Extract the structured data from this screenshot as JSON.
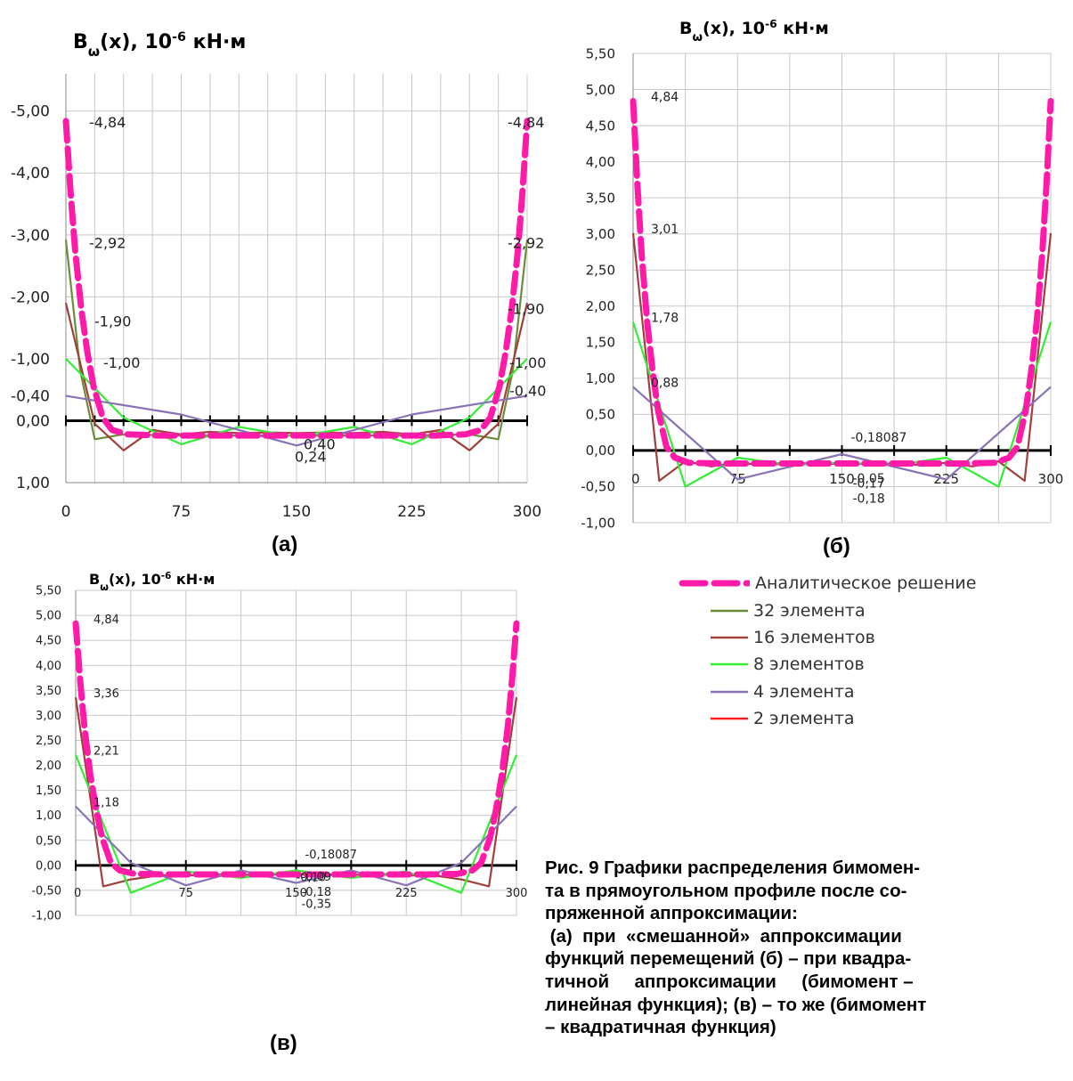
{
  "chart_data": [
    {
      "id": "a",
      "type": "line",
      "title": "B_ω(x), 10⁻⁶ кН·м",
      "panel_label": "(а)",
      "y_ticks": [
        "-5,00",
        "-4,00",
        "-3,00",
        "-2,00",
        "-1,00",
        "0,00",
        "1,00"
      ],
      "y_tick_values": [
        -5,
        -4,
        -3,
        -2,
        -1,
        0,
        1
      ],
      "y_extra_label": {
        "text": "-0,40",
        "y": -0.4
      },
      "x_ticks": [
        "0",
        "75",
        "150",
        "225",
        "300"
      ],
      "x_tick_values": [
        0,
        75,
        150,
        225,
        300
      ],
      "xlim": [
        0,
        300
      ],
      "ylim": [
        -5.6,
        1.0
      ],
      "y_inverted": true,
      "x_grid_step": 18.75,
      "series": [
        {
          "name": "Аналитическое решение",
          "color": "#ff1aa8",
          "width": 7,
          "dash": "22,9",
          "x": [
            0,
            3,
            6,
            10,
            14,
            18,
            24,
            30,
            40,
            60,
            150,
            240,
            260,
            270,
            276,
            282,
            286,
            290,
            294,
            297,
            300
          ],
          "y": [
            -4.84,
            -3.7,
            -2.75,
            -1.8,
            -1.1,
            -0.55,
            -0.05,
            0.15,
            0.22,
            0.24,
            0.24,
            0.24,
            0.22,
            0.15,
            -0.05,
            -0.55,
            -1.1,
            -1.8,
            -2.75,
            -3.7,
            -4.84
          ]
        },
        {
          "name": "32 элемента",
          "color": "#6b8e3a",
          "width": 2.2,
          "x": [
            0,
            9.375,
            18.75,
            37.5,
            75,
            112.5,
            150,
            187.5,
            225,
            262.5,
            281.25,
            290.625,
            300
          ],
          "y": [
            -2.92,
            -0.8,
            0.3,
            0.22,
            0.24,
            0.24,
            0.24,
            0.24,
            0.24,
            0.22,
            0.3,
            -0.8,
            -2.92
          ]
        },
        {
          "name": "16 элементов",
          "color": "#a0403a",
          "width": 2.2,
          "x": [
            0,
            18.75,
            37.5,
            56.25,
            75,
            93.75,
            112.5,
            131.25,
            150,
            168.75,
            187.5,
            206.25,
            225,
            243.75,
            262.5,
            281.25,
            300
          ],
          "y": [
            -1.9,
            0.05,
            0.48,
            0.15,
            0.22,
            0.18,
            0.2,
            0.19,
            0.2,
            0.19,
            0.2,
            0.18,
            0.22,
            0.15,
            0.48,
            0.05,
            -1.9
          ]
        },
        {
          "name": "8 элементов",
          "color": "#33ee33",
          "width": 2.2,
          "x": [
            0,
            37.5,
            75,
            112.5,
            150,
            187.5,
            225,
            262.5,
            300
          ],
          "y": [
            -1.0,
            -0.05,
            0.38,
            0.1,
            0.26,
            0.1,
            0.38,
            -0.05,
            -1.0
          ]
        },
        {
          "name": "4 элемента",
          "color": "#8a72b6",
          "width": 2.2,
          "x": [
            0,
            75,
            150,
            225,
            300
          ],
          "y": [
            -0.4,
            -0.1,
            0.4,
            -0.1,
            -0.4
          ]
        }
      ],
      "data_labels": [
        {
          "text": "-4,84",
          "x": 0,
          "y": -4.84,
          "dx": 26,
          "dy": 7
        },
        {
          "text": "-4,84",
          "x": 300,
          "y": -4.84,
          "dx": -22,
          "dy": 7
        },
        {
          "text": "-2,92",
          "x": 0,
          "y": -2.92,
          "dx": 26,
          "dy": 9
        },
        {
          "text": "-2,92",
          "x": 300,
          "y": -2.92,
          "dx": -22,
          "dy": 9
        },
        {
          "text": "-1,90",
          "x": 0,
          "y": -1.9,
          "dx": 32,
          "dy": 26
        },
        {
          "text": "-1,90",
          "x": 300,
          "y": -1.9,
          "dx": -22,
          "dy": 12
        },
        {
          "text": "-1,00",
          "x": 0,
          "y": -1.0,
          "dx": 42,
          "dy": 10
        },
        {
          "text": "-1,00",
          "x": 300,
          "y": -1.0,
          "dx": -20,
          "dy": 10
        },
        {
          "text": "-0,40",
          "x": 300,
          "y": -0.4,
          "dx": -20,
          "dy": 0
        },
        {
          "text": "0,40",
          "x": 150,
          "y": 0.4,
          "dx": 8,
          "dy": 4
        },
        {
          "text": "0,24",
          "x": 150,
          "y": 0.4,
          "dx": -2,
          "dy": 18
        }
      ]
    },
    {
      "id": "b",
      "type": "line",
      "title": "B_ω(x), 10⁻⁶ кН·м",
      "panel_label": "(б)",
      "y_ticks": [
        "5,50",
        "5,00",
        "4,50",
        "4,00",
        "3,50",
        "3,00",
        "2,50",
        "2,00",
        "1,50",
        "1,00",
        "0,50",
        "0,00",
        "-0,50",
        "-1,00"
      ],
      "y_tick_values": [
        5.5,
        5.0,
        4.5,
        4.0,
        3.5,
        3.0,
        2.5,
        2.0,
        1.5,
        1.0,
        0.5,
        0.0,
        -0.5,
        -1.0
      ],
      "x_ticks": [
        "0",
        "75",
        "150",
        "225",
        "300"
      ],
      "x_tick_values": [
        0,
        75,
        150,
        225,
        300
      ],
      "xlim": [
        0,
        300
      ],
      "ylim": [
        -1.0,
        5.5
      ],
      "y_inverted": false,
      "x_grid_step": 37.5,
      "series": [
        {
          "name": "Аналитическое решение",
          "color": "#ff1aa8",
          "width": 7,
          "dash": "22,9",
          "x": [
            0,
            3,
            6,
            10,
            14,
            18,
            24,
            30,
            40,
            60,
            150,
            240,
            260,
            270,
            276,
            282,
            286,
            290,
            294,
            297,
            300
          ],
          "y": [
            4.84,
            3.7,
            2.75,
            1.8,
            1.1,
            0.55,
            0.05,
            -0.1,
            -0.17,
            -0.18,
            -0.18,
            -0.18,
            -0.17,
            -0.1,
            0.05,
            0.55,
            1.1,
            1.8,
            2.75,
            3.7,
            4.84
          ]
        },
        {
          "name": "16 элементов",
          "color": "#a0403a",
          "width": 2.2,
          "x": [
            0,
            18.75,
            37.5,
            56.25,
            75,
            93.75,
            112.5,
            131.25,
            150,
            168.75,
            187.5,
            206.25,
            225,
            243.75,
            262.5,
            281.25,
            300
          ],
          "y": [
            3.01,
            -0.42,
            -0.15,
            -0.22,
            -0.17,
            -0.2,
            -0.18,
            -0.19,
            -0.18,
            -0.19,
            -0.18,
            -0.2,
            -0.17,
            -0.22,
            -0.15,
            -0.42,
            3.01
          ]
        },
        {
          "name": "8 элементов",
          "color": "#33ee33",
          "width": 2.2,
          "x": [
            0,
            37.5,
            75,
            112.5,
            150,
            187.5,
            225,
            262.5,
            300
          ],
          "y": [
            1.78,
            -0.5,
            -0.1,
            -0.2,
            -0.17,
            -0.2,
            -0.1,
            -0.5,
            1.78
          ]
        },
        {
          "name": "4 элемента",
          "color": "#8a72b6",
          "width": 2.2,
          "x": [
            0,
            75,
            150,
            225,
            300
          ],
          "y": [
            0.88,
            -0.4,
            -0.05,
            -0.4,
            0.88
          ]
        }
      ],
      "data_labels": [
        {
          "text": "4,84",
          "x": 0,
          "y": 4.84,
          "dx": 20,
          "dy": 0
        },
        {
          "text": "3,01",
          "x": 0,
          "y": 3.01,
          "dx": 20,
          "dy": 0
        },
        {
          "text": "1,78",
          "x": 0,
          "y": 1.78,
          "dx": 20,
          "dy": 0
        },
        {
          "text": "0,88",
          "x": 0,
          "y": 0.88,
          "dx": 20,
          "dy": 0
        },
        {
          "text": "-0,18087",
          "x": 150,
          "y": 0,
          "dx": 10,
          "dy": -10
        },
        {
          "text": "-0,17",
          "x": 150,
          "y": -0.17,
          "dx": 12,
          "dy": 28
        },
        {
          "text": "-0,05",
          "x": 150,
          "y": -0.05,
          "dx": 12,
          "dy": 32
        },
        {
          "text": "-0,18",
          "x": 150,
          "y": -0.18,
          "dx": 12,
          "dy": 44
        }
      ]
    },
    {
      "id": "c",
      "type": "line",
      "title": "B_ω(x), 10⁻⁶ кН·м",
      "panel_label": "(в)",
      "y_ticks": [
        "5,50",
        "5,00",
        "4,50",
        "4,00",
        "3,50",
        "3,00",
        "2,50",
        "2,00",
        "1,50",
        "1,00",
        "0,50",
        "0,00",
        "-0,50",
        "-1,00"
      ],
      "y_tick_values": [
        5.5,
        5.0,
        4.5,
        4.0,
        3.5,
        3.0,
        2.5,
        2.0,
        1.5,
        1.0,
        0.5,
        0.0,
        -0.5,
        -1.0
      ],
      "x_ticks": [
        "0",
        "75",
        "150",
        "225",
        "300"
      ],
      "x_tick_values": [
        0,
        75,
        150,
        225,
        300
      ],
      "xlim": [
        0,
        300
      ],
      "ylim": [
        -1.0,
        5.5
      ],
      "y_inverted": false,
      "x_grid_step": 37.5,
      "series": [
        {
          "name": "Аналитическое решение",
          "color": "#ff1aa8",
          "width": 7,
          "dash": "22,9",
          "x": [
            0,
            3,
            6,
            10,
            14,
            18,
            24,
            30,
            40,
            60,
            150,
            240,
            260,
            270,
            276,
            282,
            286,
            290,
            294,
            297,
            300
          ],
          "y": [
            4.84,
            3.7,
            2.75,
            1.8,
            1.1,
            0.55,
            0.05,
            -0.1,
            -0.17,
            -0.18,
            -0.18,
            -0.18,
            -0.17,
            -0.1,
            0.05,
            0.55,
            1.1,
            1.8,
            2.75,
            3.7,
            4.84
          ]
        },
        {
          "name": "16 элементов",
          "color": "#a0403a",
          "width": 2.2,
          "x": [
            0,
            18.75,
            37.5,
            56.25,
            75,
            93.75,
            112.5,
            131.25,
            150,
            168.75,
            187.5,
            206.25,
            225,
            243.75,
            262.5,
            281.25,
            300
          ],
          "y": [
            3.36,
            -0.42,
            -0.28,
            -0.2,
            -0.2,
            -0.18,
            -0.19,
            -0.18,
            -0.18,
            -0.18,
            -0.19,
            -0.18,
            -0.2,
            -0.2,
            -0.28,
            -0.42,
            3.36
          ]
        },
        {
          "name": "8 элементов",
          "color": "#33ee33",
          "width": 2.2,
          "x": [
            0,
            37.5,
            75,
            112.5,
            150,
            187.5,
            225,
            262.5,
            300
          ],
          "y": [
            2.21,
            -0.55,
            -0.12,
            -0.25,
            -0.1,
            -0.25,
            -0.12,
            -0.55,
            2.21
          ]
        },
        {
          "name": "4 элемента",
          "color": "#8a72b6",
          "width": 2.2,
          "x": [
            0,
            37.5,
            75,
            112.5,
            150,
            187.5,
            225,
            262.5,
            300
          ],
          "y": [
            1.18,
            0.05,
            -0.4,
            -0.1,
            -0.35,
            -0.1,
            -0.4,
            0.05,
            1.18
          ]
        }
      ],
      "data_labels": [
        {
          "text": "4,84",
          "x": 0,
          "y": 4.84,
          "dx": 20,
          "dy": 0
        },
        {
          "text": "3,36",
          "x": 0,
          "y": 3.36,
          "dx": 20,
          "dy": 0
        },
        {
          "text": "2,21",
          "x": 0,
          "y": 2.21,
          "dx": 20,
          "dy": 0
        },
        {
          "text": "1,18",
          "x": 0,
          "y": 1.18,
          "dx": 20,
          "dy": 0
        },
        {
          "text": "-0,18087",
          "x": 150,
          "y": 0,
          "dx": 10,
          "dy": -8
        },
        {
          "text": "-0,10",
          "x": 150,
          "y": -0.1,
          "dx": 0,
          "dy": 12
        },
        {
          "text": "-0,09",
          "x": 150,
          "y": -0.09,
          "dx": 6,
          "dy": 12
        },
        {
          "text": "-0,18",
          "x": 150,
          "y": -0.18,
          "dx": 6,
          "dy": 24
        },
        {
          "text": "-0,35",
          "x": 150,
          "y": -0.35,
          "dx": 6,
          "dy": 28
        }
      ]
    }
  ],
  "legend": [
    {
      "name": "Аналитическое решение",
      "color": "#ff1aa8",
      "dashed": true
    },
    {
      "name": "32 элемента",
      "color": "#6b8e3a",
      "dashed": false
    },
    {
      "name": "16 элементов",
      "color": "#a0403a",
      "dashed": false
    },
    {
      "name": "8 элементов",
      "color": "#33ee33",
      "dashed": false
    },
    {
      "name": "4 элемента",
      "color": "#8a72b6",
      "dashed": false
    },
    {
      "name": "2 элемента",
      "color": "#ff2020",
      "dashed": false
    }
  ],
  "caption": {
    "lines": [
      "Рис. 9 Графики распределения бимомен-",
      "та в прямоугольном профиле после со-",
      "пряженной аппроксимации:",
      " (а)  при  «смешанной»  аппроксимации",
      "функций перемещений (б) – при квадра-",
      "тичной     аппроксимации     (бимомент –",
      "линейная функция); (в) – то же (бимомент",
      "– квадратичная функция)"
    ]
  }
}
